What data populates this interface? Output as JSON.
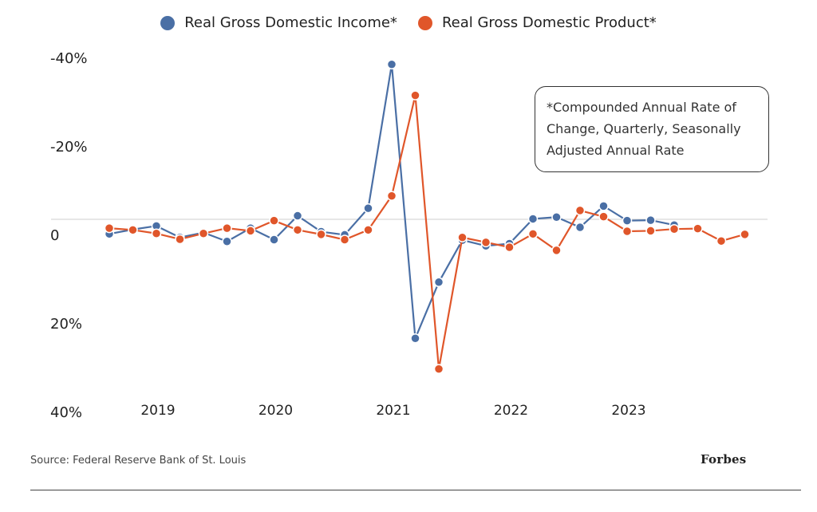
{
  "legend": {
    "items": [
      {
        "label": "Real Gross Domestic Income*",
        "color": "#4a6fa5"
      },
      {
        "label": "Real Gross Domestic Product*",
        "color": "#e0562a"
      }
    ]
  },
  "note": {
    "text": "*Compounded Annual Rate of Change, Quarterly, Seasonally Adjusted Annual Rate"
  },
  "footer": {
    "source": "Source: Federal Reserve Bank of St. Louis",
    "brand": "Forbes"
  },
  "chart_data": {
    "type": "line",
    "title": "",
    "xlabel": "",
    "ylabel": "",
    "y_inverted": true,
    "ylim": [
      -40,
      40
    ],
    "y_ticks": [
      -40,
      -20,
      0,
      20,
      40
    ],
    "y_tick_labels": [
      "-40%",
      "-20%",
      "0",
      "20%",
      "40%"
    ],
    "x_tick_labels": [
      "2019",
      "2020",
      "2021",
      "2022",
      "2023"
    ],
    "x_tick_quarter_index": [
      2,
      7,
      12,
      17,
      22
    ],
    "x_quarters": [
      "2018 Q3",
      "2018 Q4",
      "2019 Q1",
      "2019 Q2",
      "2019 Q3",
      "2019 Q4",
      "2020 Q1",
      "2020 Q2",
      "2020 Q3",
      "2020 Q4",
      "2021 Q1",
      "2021 Q2",
      "2021 Q3",
      "2021 Q4",
      "2022 Q1",
      "2022 Q2",
      "2022 Q3",
      "2022 Q4",
      "2023 Q1",
      "2023 Q2",
      "2023 Q3",
      "2023 Q4",
      "2024 Q1",
      "2024 Q2",
      "2024 Q3",
      "2024 Q4",
      "2025 Q1",
      "2025 Q2"
    ],
    "grid": false,
    "reference_line": 0,
    "legend_position": "top-center",
    "series": [
      {
        "name": "Real Gross Domestic Income*",
        "color": "#4a6fa5",
        "values": [
          3.3,
          2.3,
          1.5,
          4.1,
          3.0,
          5.0,
          2.0,
          4.6,
          -0.8,
          2.8,
          3.5,
          -2.5,
          -35.0,
          26.9,
          14.2,
          4.7,
          6.0,
          5.5,
          -0.1,
          -0.5,
          1.8,
          -3.0,
          0.3,
          0.2,
          1.3,
          null,
          null,
          null
        ]
      },
      {
        "name": "Real Gross Domestic Product*",
        "color": "#e0562a",
        "values": [
          2.0,
          2.4,
          3.2,
          4.5,
          3.2,
          2.0,
          2.6,
          0.3,
          2.4,
          3.4,
          4.6,
          2.4,
          -5.3,
          -28.0,
          33.8,
          4.1,
          5.2,
          6.3,
          3.3,
          7.0,
          -2.0,
          -0.6,
          2.7,
          2.6,
          2.2,
          2.1,
          4.9,
          3.4
        ]
      }
    ]
  }
}
